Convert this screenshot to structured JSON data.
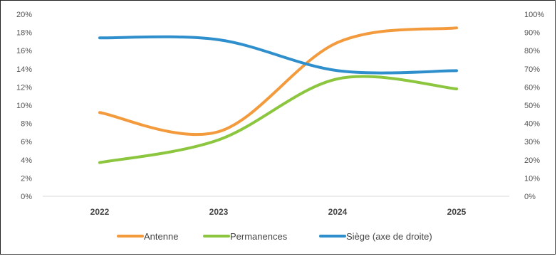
{
  "chart_data": {
    "type": "line",
    "title": "",
    "categories": [
      "2022",
      "2023",
      "2024",
      "2025"
    ],
    "y_left": {
      "ylim": [
        0,
        20
      ],
      "ticks": [
        "0%",
        "2%",
        "4%",
        "6%",
        "8%",
        "10%",
        "12%",
        "14%",
        "16%",
        "18%",
        "20%"
      ]
    },
    "y_right": {
      "ylim": [
        0,
        100
      ],
      "ticks": [
        "0%",
        "10%",
        "20%",
        "30%",
        "40%",
        "50%",
        "60%",
        "70%",
        "80%",
        "90%",
        "100%"
      ]
    },
    "series": [
      {
        "name": "Antenne",
        "axis": "left",
        "color": "#F39A3C",
        "values": [
          9.2,
          7.1,
          16.9,
          18.5
        ]
      },
      {
        "name": "Permanences",
        "axis": "left",
        "color": "#8CC63F",
        "values": [
          3.7,
          6.2,
          12.9,
          11.8
        ]
      },
      {
        "name": "Siège (axe de droite)",
        "axis": "right",
        "color": "#2E8FCC",
        "values": [
          87,
          86,
          69,
          69
        ]
      }
    ],
    "grid": false,
    "legend": "bottom"
  }
}
